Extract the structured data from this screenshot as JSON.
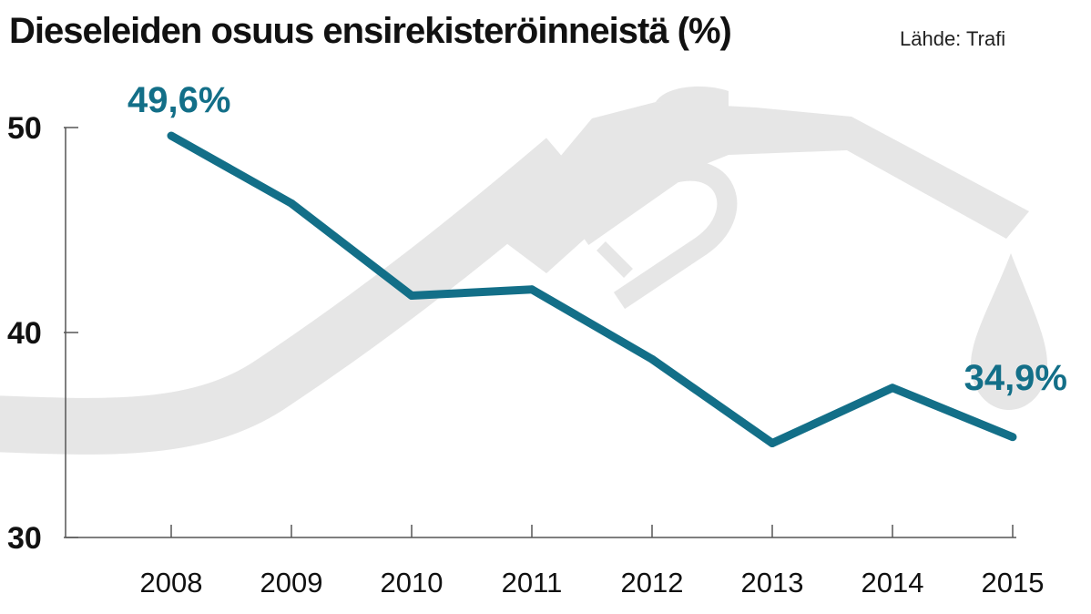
{
  "title": "Dieseleiden osuus ensirekisteröinneistä (%)",
  "source": "Lähde: Trafi",
  "colors": {
    "line": "#136f88",
    "decoration": "#e6e6e6",
    "axis": "#555555",
    "text": "#111111"
  },
  "decoration_icon": "fuel-nozzle-icon",
  "chart_data": {
    "type": "line",
    "title": "Dieseleiden osuus ensirekisteröinneistä (%)",
    "xlabel": "",
    "ylabel": "",
    "x": [
      "2008",
      "2009",
      "2010",
      "2011",
      "2012",
      "2013",
      "2014",
      "2015"
    ],
    "values": [
      49.6,
      46.3,
      41.8,
      42.1,
      38.7,
      34.6,
      37.3,
      34.9
    ],
    "ylim": [
      30,
      50
    ],
    "yticks": [
      30,
      40,
      50
    ],
    "grid": false,
    "legend": "none",
    "data_labels": [
      {
        "index": 0,
        "text": "49,6%"
      },
      {
        "index": 7,
        "text": "34,9%"
      }
    ]
  }
}
